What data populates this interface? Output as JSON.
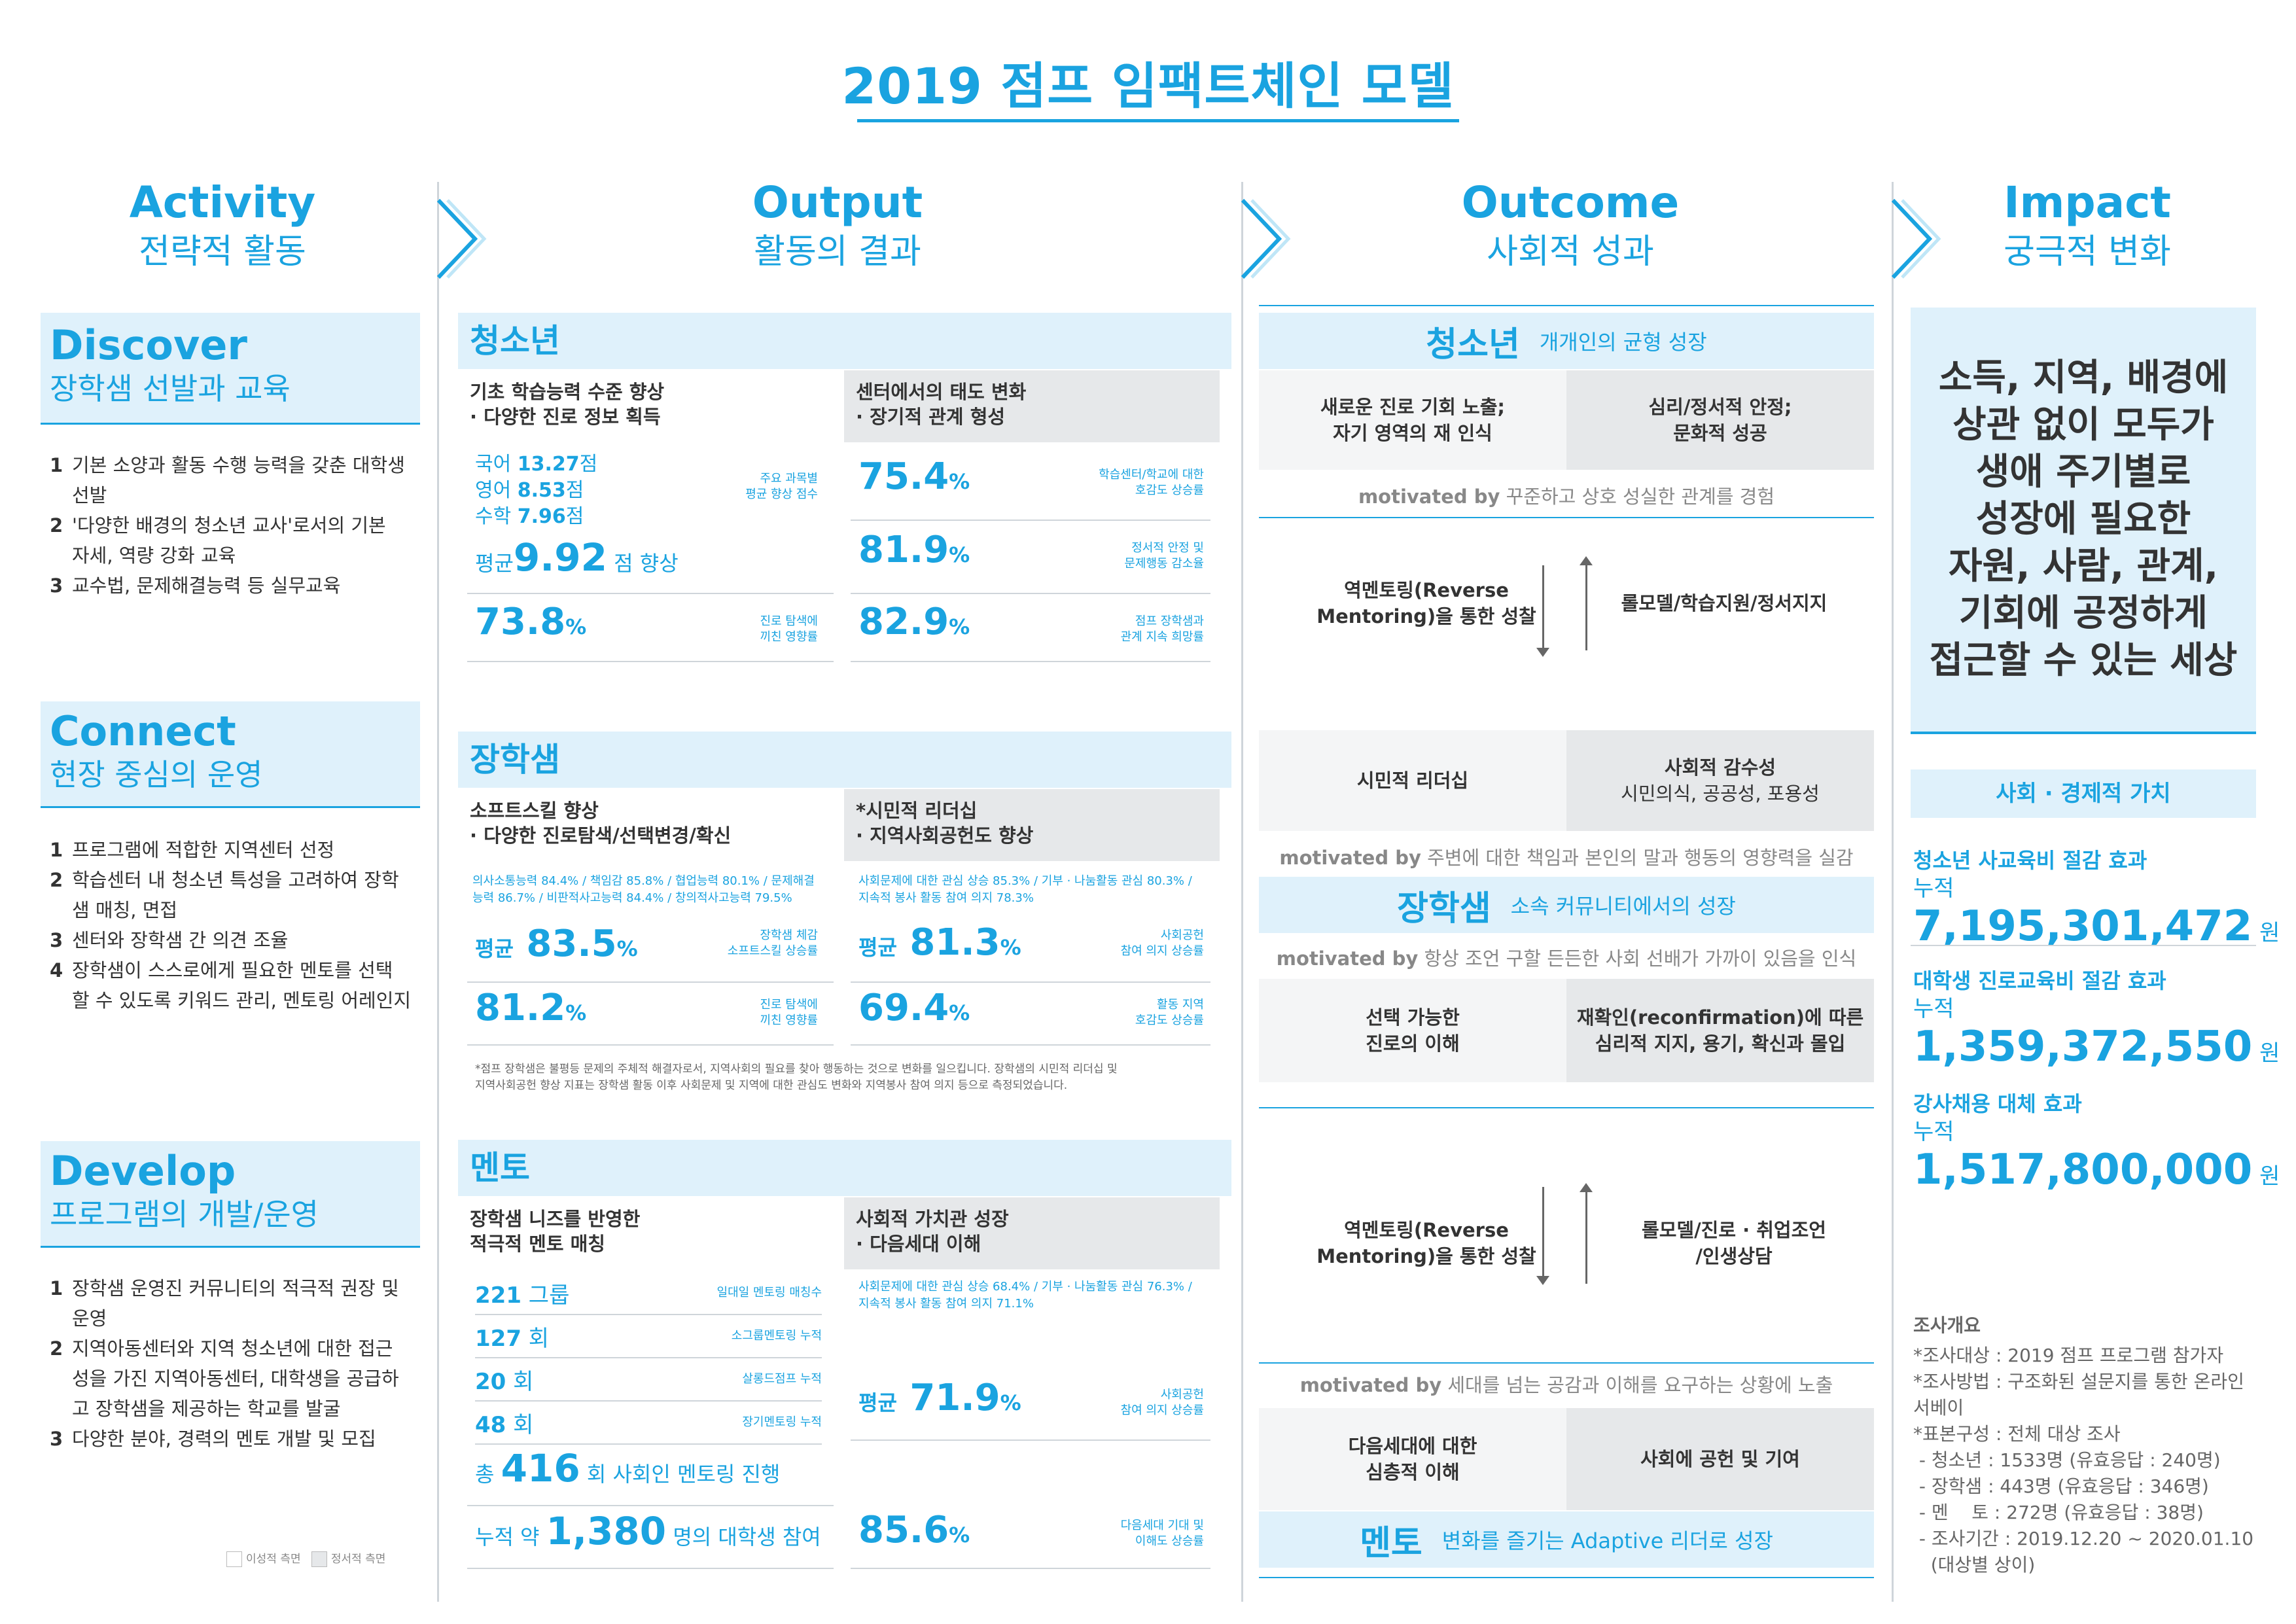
{
  "title": "2019 점프 임팩트체인 모델",
  "columns": [
    {
      "en": "Activity",
      "ko": "전략적 활동"
    },
    {
      "en": "Output",
      "ko": "활동의 결과"
    },
    {
      "en": "Outcome",
      "ko": "사회적 성과"
    },
    {
      "en": "Impact",
      "ko": "궁극적 변화"
    }
  ],
  "activity": {
    "discover": {
      "title": "Discover",
      "sub": "장학샘 선발과 교육",
      "items": [
        {
          "n": "1",
          "lines": [
            "기본 소양과 활동 수행 능력을 갖춘 대학생",
            "선발"
          ]
        },
        {
          "n": "2",
          "lines": [
            "'다양한 배경의 청소년 교사'로서의 기본",
            "자세, 역량 강화 교육"
          ]
        },
        {
          "n": "3",
          "lines": [
            "교수법, 문제해결능력 등 실무교육"
          ]
        }
      ]
    },
    "connect": {
      "title": "Connect",
      "sub": "현장 중심의 운영",
      "items": [
        {
          "n": "1",
          "lines": [
            "프로그램에 적합한 지역센터 선정"
          ]
        },
        {
          "n": "2",
          "lines": [
            "학습센터 내 청소년 특성을 고려하여 장학",
            "샘 매칭, 면접"
          ]
        },
        {
          "n": "3",
          "lines": [
            "센터와 장학샘 간 의견 조율"
          ]
        },
        {
          "n": "4",
          "lines": [
            "장학샘이 스스로에게 필요한 멘토를 선택",
            "할 수 있도록 키워드 관리, 멘토링 어레인지"
          ]
        }
      ]
    },
    "develop": {
      "title": "Develop",
      "sub": "프로그램의 개발/운영",
      "items": [
        {
          "n": "1",
          "lines": [
            "장학샘 운영진 커뮤니티의 적극적 권장 및",
            "운영"
          ]
        },
        {
          "n": "2",
          "lines": [
            "지역아동센터와 지역 청소년에 대한 접근",
            "성을 가진 지역아동센터, 대학생을 공급하",
            "고 장학샘을 제공하는 학교를 발굴"
          ]
        },
        {
          "n": "3",
          "lines": [
            "다양한 분야, 경력의 멘토 개발 및 모집"
          ]
        }
      ]
    },
    "legend": {
      "rational": "이성적 측면",
      "emotional": "정서적 측면"
    }
  },
  "output": {
    "youth": {
      "header": "청소년",
      "left_title": [
        "기초 학습능력 수준 향상",
        "· 다양한 진로 정보 획득"
      ],
      "right_title": [
        "센터에서의 태도 변화",
        "· 장기적 관계 형성"
      ],
      "scores": {
        "kor_label": "국어",
        "kor": "13.27",
        "eng_label": "영어",
        "eng": "8.53",
        "math_label": "수학",
        "math": "7.96",
        "unit": "점"
      },
      "scores_note": [
        "주요 과목별",
        "평균 향상 점수"
      ],
      "avg_pre": "평균",
      "avg": "9.92",
      "avg_post": "점 향상",
      "left_stat": {
        "value": "73.8",
        "unit": "%",
        "note": [
          "진로 탐색에",
          "끼친 영향률"
        ]
      },
      "right_stats": [
        {
          "value": "75.4",
          "unit": "%",
          "note": [
            "학습센터/학교에 대한",
            "호감도 상승률"
          ]
        },
        {
          "value": "81.9",
          "unit": "%",
          "note": [
            "정서적 안정 및",
            "문제행동 감소율"
          ]
        },
        {
          "value": "82.9",
          "unit": "%",
          "note": [
            "점프 장학샘과",
            "관계 지속 희망률"
          ]
        }
      ]
    },
    "scholar": {
      "header": "장학샘",
      "left_title": [
        "소프트스킬 향상",
        "· 다양한 진로탐색/선택변경/확신"
      ],
      "right_title": [
        "*시민적 리더십",
        "· 지역사회공헌도 향상"
      ],
      "left_detail": [
        "의사소통능력 84.4% / 책임감 85.8% / 협업능력 80.1% / 문제해결",
        "능력 86.7% / 비판적사고능력 84.4% / 창의적사고능력 79.5%"
      ],
      "right_detail": [
        "사회문제에 대한 관심 상승 85.3% / 기부 · 나눔활동 관심 80.3% /",
        "지속적 봉사 활동 참여 의지 78.3%"
      ],
      "left_stats": [
        {
          "pre": "평균",
          "value": "83.5",
          "unit": "%",
          "note": [
            "장학샘 체감",
            "소프트스킬 상승률"
          ]
        },
        {
          "pre": "",
          "value": "81.2",
          "unit": "%",
          "note": [
            "진로 탐색에",
            "끼친 영향률"
          ]
        }
      ],
      "right_stats": [
        {
          "pre": "평균",
          "value": "81.3",
          "unit": "%",
          "note": [
            "사회공헌",
            "참여 의지 상승률"
          ]
        },
        {
          "pre": "",
          "value": "69.4",
          "unit": "%",
          "note": [
            "활동 지역",
            "호감도 상승률"
          ]
        }
      ],
      "footnote": [
        "*점프 장학샘은 불평등 문제의 주체적 해결자로서, 지역사회의 필요를 찾아 행동하는 것으로 변화를 일으킵니다. 장학샘의 시민적 리더십 및",
        "지역사회공헌 향상 지표는 장학샘 활동 이후 사회문제 및 지역에 대한 관심도 변화와 지역봉사 참여 의지 등으로 측정되었습니다."
      ]
    },
    "mentor": {
      "header": "멘토",
      "left_title": [
        "장학샘 니즈를 반영한",
        "적극적 멘토 매칭"
      ],
      "right_title": [
        "사회적 가치관 성장",
        "· 다음세대 이해"
      ],
      "counts": [
        {
          "value": "221",
          "unit": "그룹",
          "note": "일대일 멘토링 매칭수"
        },
        {
          "value": "127",
          "unit": "회",
          "note": "소그룹멘토링 누적"
        },
        {
          "value": "20",
          "unit": "회",
          "note": "살롱드점프 누적"
        },
        {
          "value": "48",
          "unit": "회",
          "note": "장기멘토링 누적"
        }
      ],
      "total_pre": "총",
      "total": "416",
      "total_post": "회 사회인 멘토링 진행",
      "cum_pre": "누적 약",
      "cum": "1,380",
      "cum_post": "명의 대학생 참여",
      "right_detail": [
        "사회문제에 대한 관심 상승 68.4% / 기부 · 나눔활동 관심 76.3% /",
        "지속적 봉사 활동 참여 의지 71.1%"
      ],
      "right_stats": [
        {
          "pre": "평균",
          "value": "71.9",
          "unit": "%",
          "note": [
            "사회공헌",
            "참여 의지 상승률"
          ]
        },
        {
          "pre": "",
          "value": "85.6",
          "unit": "%",
          "note": [
            "다음세대 기대 및",
            "이해도 상승률"
          ]
        }
      ]
    }
  },
  "outcome": {
    "youth_header": "청소년",
    "youth_sub": "개개인의 균형 성장",
    "box1_left": [
      "새로운 진로 기회 노출;",
      "자기 영역의 재 인식"
    ],
    "box1_right": [
      "심리/정서적 안정;",
      "문화적 성공"
    ],
    "mot1_b": "motivated by",
    "mot1": "꾸준하고 상호 성실한 관계를 경험",
    "rev1_left": [
      "역멘토링(Reverse",
      "Mentoring)을 통한 성찰"
    ],
    "rev1_right": [
      "롤모델/학습지원/정서지지"
    ],
    "box2_left": [
      "시민적 리더십"
    ],
    "box2_right_title": "사회적 감수성",
    "box2_right_sub": "시민의식, 공공성, 포용성",
    "mot2_b": "motivated by",
    "mot2": "주변에 대한 책임과 본인의 말과 행동의 영향력을 실감",
    "scholar_header": "장학샘",
    "scholar_sub": "소속 커뮤니티에서의 성장",
    "mot3_b": "motivated by",
    "mot3": "항상 조언 구할 든든한 사회 선배가 가까이 있음을 인식",
    "box3_left": [
      "선택 가능한",
      "진로의 이해"
    ],
    "box3_right": [
      "재확인(reconfirmation)에 따른",
      "심리적 지지, 용기, 확신과 몰입"
    ],
    "rev2_left": [
      "역멘토링(Reverse",
      "Mentoring)을 통한 성찰"
    ],
    "rev2_right": [
      "롤모델/진로 · 취업조언",
      "/인생상담"
    ],
    "mot4_b": "motivated by",
    "mot4": "세대를 넘는 공감과 이해를 요구하는 상황에 노출",
    "box4_left": [
      "다음세대에 대한",
      "심층적 이해"
    ],
    "box4_right": [
      "사회에 공헌 및 기여"
    ],
    "mentor_header": "멘토",
    "mentor_sub": "변화를 즐기는 Adaptive 리더로 성장"
  },
  "impact": {
    "vision": [
      "소득, 지역, 배경에",
      "상관 없이 모두가",
      "생애 주기별로",
      "성장에 필요한",
      "자원, 사람, 관계,",
      "기회에 공정하게",
      "접근할 수 있는 세상"
    ],
    "value_header": "사회 · 경제적 가치",
    "values": [
      {
        "label": "청소년 사교육비 절감 효과",
        "pre": "누적",
        "value": "7,195,301,472",
        "unit": "원"
      },
      {
        "label": "대학생 진로교육비 절감 효과",
        "pre": "누적",
        "value": "1,359,372,550",
        "unit": "원"
      },
      {
        "label": "강사채용 대체 효과",
        "pre": "누적",
        "value": "1,517,800,000",
        "unit": "원"
      }
    ],
    "survey_title": "조사개요",
    "survey_lines": [
      "*조사대상 : 2019 점프 프로그램 참가자",
      "*조사방법 : 구조화된 설문지를 통한 온라인",
      "서베이",
      "*표본구성 : 전체 대상 조사",
      " - 청소년 : 1533명 (유효응답 : 240명)",
      " - 장학샘 : 443명 (유효응답 : 346명)",
      " - 멘    토 : 272명 (유효응답 : 38명)",
      " - 조사기간 : 2019.12.20 ~ 2020.01.10",
      "   (대상별 상이)"
    ]
  },
  "colors": {
    "accent": "#1aa3e0",
    "light_panel": "#dff1fb",
    "grey_panel": "#e6e8ea"
  }
}
